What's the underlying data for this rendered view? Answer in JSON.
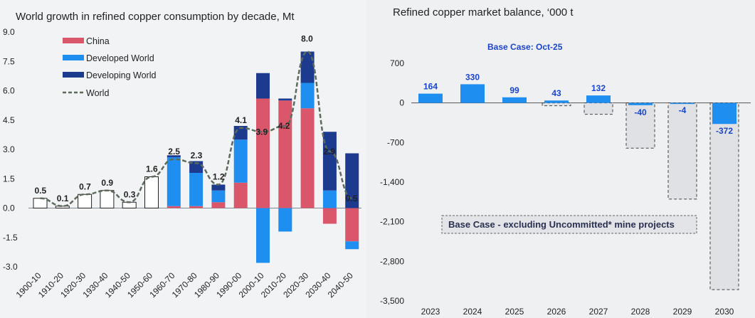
{
  "chart_data": [
    {
      "type": "bar",
      "title": "World growth in refined copper consumption by decade, Mt",
      "ylim": [
        -3.0,
        9.0
      ],
      "yticks": [
        "9.0",
        "7.5",
        "6.0",
        "4.5",
        "3.0",
        "1.5",
        "0.0",
        "-1.5",
        "-3.0"
      ],
      "categories": [
        "1900-10",
        "1910-20",
        "1920-30",
        "1930-40",
        "1940-50",
        "1950-60",
        "1960-70",
        "1970-80",
        "1980-90",
        "1990-00",
        "2000-10",
        "2010-20",
        "2020-30",
        "2030-40",
        "2040-50"
      ],
      "series": [
        {
          "name": "China",
          "color": "#d9566b",
          "values": [
            0,
            0,
            0,
            0,
            0,
            0,
            0.1,
            0.1,
            0.3,
            1.3,
            5.6,
            5.5,
            5.1,
            -0.8,
            -1.7
          ]
        },
        {
          "name": "Developed World",
          "color": "#1e8ff0",
          "values": [
            0,
            0,
            0,
            0,
            0,
            0,
            2.5,
            1.7,
            0.6,
            2.2,
            -2.8,
            -1.2,
            1.3,
            0.9,
            -0.4
          ]
        },
        {
          "name": "Developing World",
          "color": "#1c3a8e",
          "values": [
            0,
            0,
            0,
            0,
            0,
            0,
            0.1,
            0.6,
            0.3,
            0.7,
            1.3,
            0.1,
            1.6,
            3.0,
            2.8
          ]
        },
        {
          "name": "World",
          "type": "line",
          "color": "#5d6b5d",
          "values": [
            0.5,
            0.1,
            0.7,
            0.9,
            0.3,
            1.6,
            2.5,
            2.3,
            1.2,
            4.1,
            3.9,
            4.2,
            8.0,
            2.9,
            0.5
          ]
        }
      ],
      "outline_values": [
        0.5,
        0.1,
        0.7,
        0.9,
        0.3,
        1.6
      ],
      "data_labels": [
        "0.5",
        "0.1",
        "0.7",
        "0.9",
        "0.3",
        "1.6",
        "2.5",
        "2.3",
        "1.2",
        "4.1",
        "3.9",
        "4.2",
        "8.0",
        "2.9",
        "0.5"
      ],
      "legend_position": "top-left"
    },
    {
      "type": "bar",
      "title": "Refined copper market balance, ‘000 t",
      "subtitle": "Base Case: Oct-25",
      "annotation": "Base Case - excluding Uncommitted* mine projects",
      "ylim": [
        -3500,
        700
      ],
      "yticks": [
        "700",
        "0",
        "-700",
        "-1,400",
        "-2,100",
        "-2,800",
        "-3,500"
      ],
      "categories": [
        "2023",
        "2024",
        "2025",
        "2026",
        "2027",
        "2028",
        "2029",
        "2030"
      ],
      "series": [
        {
          "name": "Base Case",
          "color": "#1e8ff0",
          "values": [
            164,
            330,
            99,
            43,
            132,
            -40,
            -4,
            -372
          ]
        },
        {
          "name": "Base Case - excluding Uncommitted* mine projects",
          "color": "#dfe1e5",
          "values": [
            164,
            330,
            99,
            -50,
            -200,
            -800,
            -1700,
            -3300
          ]
        }
      ],
      "data_labels": [
        "164",
        "330",
        "99",
        "43",
        "132",
        "-40",
        "-4",
        "-372"
      ]
    }
  ]
}
